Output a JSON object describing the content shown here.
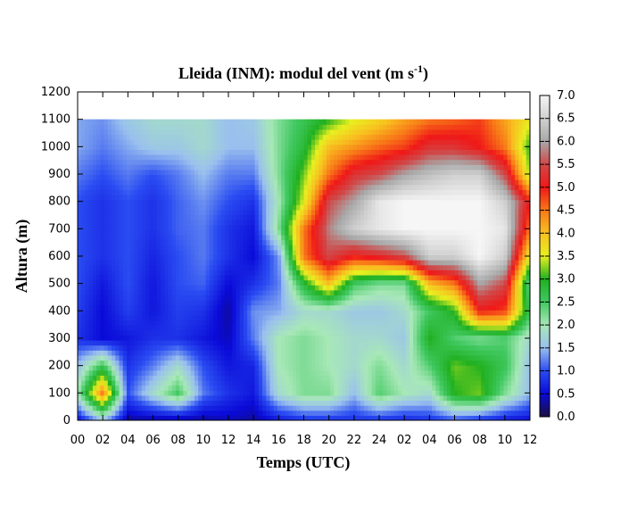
{
  "chart_data": {
    "type": "heatmap",
    "title": "Lleida (INM): modul del vent (m s",
    "title_sup": "-1",
    "title_end": ")",
    "xlabel": "Temps (UTC)",
    "ylabel": "Altura (m)",
    "x_tick_labels": [
      "00",
      "02",
      "04",
      "06",
      "08",
      "10",
      "12",
      "14",
      "16",
      "18",
      "20",
      "22",
      "24",
      "02",
      "04",
      "06",
      "08",
      "10",
      "12"
    ],
    "x_range_hours": [
      0,
      36
    ],
    "y_ticks": [
      "0",
      "100",
      "200",
      "300",
      "400",
      "500",
      "600",
      "700",
      "800",
      "900",
      "1000",
      "1100",
      "1200"
    ],
    "ylim": [
      0,
      1200
    ],
    "data_top_m": 1100,
    "colorbar": {
      "ticks": [
        "0.0",
        "0.5",
        "1.0",
        "1.5",
        "2.0",
        "2.5",
        "3.0",
        "3.5",
        "4.0",
        "4.5",
        "5.0",
        "5.5",
        "6.0",
        "6.5",
        "7.0"
      ],
      "range": [
        0,
        7
      ],
      "palette": [
        {
          "v": 0.0,
          "c": "#1a1040"
        },
        {
          "v": 0.5,
          "c": "#0a0ad8"
        },
        {
          "v": 1.0,
          "c": "#2a4cf2"
        },
        {
          "v": 1.5,
          "c": "#9ac0ee"
        },
        {
          "v": 2.0,
          "c": "#a8e8b8"
        },
        {
          "v": 2.5,
          "c": "#40c860"
        },
        {
          "v": 3.0,
          "c": "#20b020"
        },
        {
          "v": 3.5,
          "c": "#e8f020"
        },
        {
          "v": 4.0,
          "c": "#f8c020"
        },
        {
          "v": 4.5,
          "c": "#f87818"
        },
        {
          "v": 5.0,
          "c": "#f01818"
        },
        {
          "v": 5.5,
          "c": "#d04848"
        },
        {
          "v": 6.0,
          "c": "#a8a8a8"
        },
        {
          "v": 6.5,
          "c": "#d0d0d0"
        },
        {
          "v": 7.0,
          "c": "#f6f6f6"
        }
      ]
    },
    "heights_m": [
      0,
      100,
      200,
      300,
      400,
      500,
      600,
      700,
      800,
      900,
      1000,
      1100
    ],
    "times_h": [
      0,
      2,
      4,
      6,
      8,
      10,
      12,
      14,
      16,
      18,
      20,
      22,
      24,
      26,
      28,
      30,
      32,
      34,
      36
    ],
    "values": [
      [
        0.5,
        1.5,
        0.3,
        0.3,
        0.3,
        0.3,
        0.4,
        0.3,
        0.6,
        0.8,
        0.8,
        0.8,
        0.8,
        0.7,
        0.8,
        1.0,
        0.8,
        0.6,
        0.5
      ],
      [
        2.0,
        4.5,
        1.0,
        1.8,
        2.5,
        1.2,
        0.8,
        0.6,
        1.8,
        2.2,
        2.2,
        1.5,
        2.4,
        2.0,
        1.8,
        3.0,
        3.2,
        2.2,
        1.5
      ],
      [
        1.5,
        2.6,
        0.8,
        1.2,
        1.8,
        1.0,
        0.6,
        0.7,
        2.0,
        2.2,
        2.0,
        1.8,
        2.2,
        1.8,
        2.4,
        3.2,
        3.0,
        2.6,
        1.5
      ],
      [
        0.8,
        0.5,
        0.6,
        0.8,
        0.8,
        0.6,
        0.4,
        1.2,
        2.0,
        2.2,
        2.0,
        1.8,
        1.8,
        1.6,
        3.0,
        2.4,
        2.2,
        2.4,
        1.8
      ],
      [
        0.9,
        0.5,
        0.9,
        0.6,
        0.9,
        0.8,
        0.3,
        1.3,
        1.4,
        1.8,
        1.8,
        1.6,
        1.6,
        1.8,
        2.5,
        3.0,
        5.0,
        4.8,
        2.6
      ],
      [
        1.0,
        0.6,
        1.0,
        0.6,
        1.0,
        1.1,
        0.5,
        0.8,
        1.2,
        2.8,
        4.0,
        2.5,
        2.2,
        2.2,
        4.0,
        4.5,
        6.0,
        5.5,
        2.2
      ],
      [
        1.0,
        0.8,
        1.0,
        0.7,
        1.0,
        1.2,
        0.8,
        0.5,
        1.3,
        4.5,
        5.5,
        5.0,
        5.2,
        5.5,
        6.5,
        6.5,
        7.0,
        6.5,
        3.5
      ],
      [
        1.0,
        0.8,
        1.0,
        0.8,
        1.1,
        1.2,
        0.8,
        0.6,
        2.2,
        4.5,
        5.8,
        6.5,
        6.8,
        7.0,
        7.0,
        7.0,
        7.0,
        6.8,
        4.5
      ],
      [
        1.0,
        0.8,
        1.0,
        0.8,
        1.1,
        1.3,
        1.0,
        0.8,
        2.0,
        3.5,
        5.5,
        6.0,
        6.8,
        7.0,
        7.0,
        7.0,
        7.0,
        6.5,
        5.0
      ],
      [
        1.2,
        1.0,
        1.2,
        1.0,
        1.2,
        1.5,
        1.2,
        1.2,
        2.2,
        3.2,
        4.5,
        5.3,
        5.5,
        6.0,
        6.3,
        6.5,
        6.5,
        5.5,
        3.3
      ],
      [
        1.4,
        1.2,
        1.4,
        1.6,
        1.6,
        1.8,
        1.5,
        1.5,
        2.2,
        2.8,
        4.0,
        4.3,
        4.6,
        4.8,
        5.3,
        5.3,
        5.0,
        4.5,
        3.0
      ],
      [
        1.4,
        1.3,
        1.6,
        1.8,
        1.8,
        1.8,
        1.5,
        1.6,
        2.2,
        2.6,
        3.0,
        3.5,
        3.8,
        4.2,
        4.5,
        4.6,
        4.8,
        4.2,
        3.6
      ]
    ]
  }
}
